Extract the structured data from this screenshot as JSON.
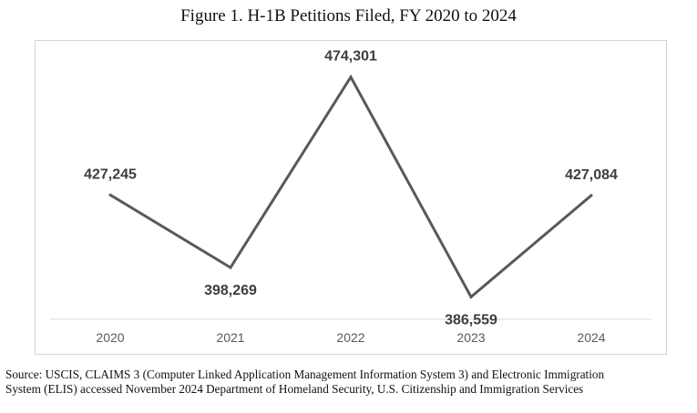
{
  "figure": {
    "title": "Figure 1. H-1B Petitions Filed, FY 2020 to 2024"
  },
  "chart_data": {
    "type": "line",
    "title": "Figure 1. H-1B Petitions Filed, FY 2020 to 2024",
    "categories": [
      "2020",
      "2021",
      "2022",
      "2023",
      "2024"
    ],
    "values": [
      427245,
      398269,
      474301,
      386559,
      427084
    ],
    "value_labels": [
      "427,245",
      "398,269",
      "474,301",
      "386,559",
      "427,084"
    ],
    "xlabel": "",
    "ylabel": "",
    "ylim": [
      370000,
      480000
    ],
    "grid": false,
    "legend": "none",
    "line_color": "#595959"
  },
  "source": {
    "line1": "Source: USCIS, CLAIMS 3 (Computer Linked Application Management Information System 3) and Electronic Immigration",
    "line2": "System (ELIS) accessed November 2024 Department of Homeland Security, U.S. Citizenship and Immigration Services"
  }
}
